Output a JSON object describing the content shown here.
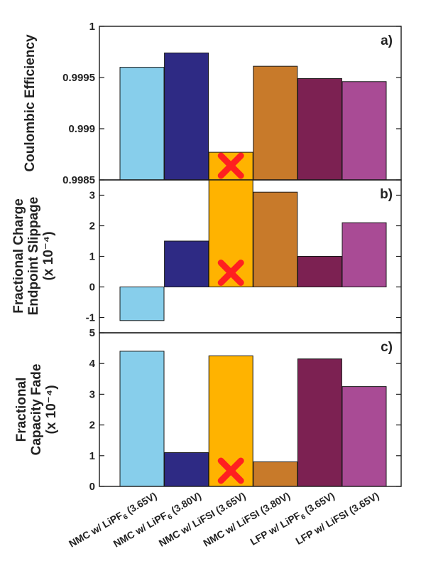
{
  "chart_data": {
    "type": "bar",
    "categories": [
      "NMC w/ LiPF6 (3.65V)",
      "NMC w/ LiPF6 (3.80V)",
      "NMC w/ LiFSI (3.65V)",
      "NMC w/ LiFSI (3.80V)",
      "LFP w/ LiPF6 (3.65V)",
      "LFP w/ LiFSI (3.65V)"
    ],
    "category_labels": [
      {
        "pre": "NMC w/ LiPF",
        "sub": "6",
        "post": " (3.65V)"
      },
      {
        "pre": "NMC w/ LiPF",
        "sub": "6",
        "post": " (3.80V)"
      },
      {
        "pre": "NMC w/ LiFSI (3.65V)",
        "sub": "",
        "post": ""
      },
      {
        "pre": "NMC w/ LiFSI (3.80V)",
        "sub": "",
        "post": ""
      },
      {
        "pre": "LFP w/ LiPF",
        "sub": "6",
        "post": " (3.65V)"
      },
      {
        "pre": "LFP w/ LiFSI (3.65V)",
        "sub": "",
        "post": ""
      }
    ],
    "colors": [
      "#87ceeb",
      "#2e2a84",
      "#ffb300",
      "#c87a2a",
      "#7c2152",
      "#a94b95"
    ],
    "marker_color": "#ff2020",
    "marked_category_index": 2,
    "panels": [
      {
        "label": "a)",
        "ylabel_lines": [
          "Coulombic Efficiency"
        ],
        "ylim": [
          0.9985,
          1
        ],
        "ticks": [
          0.9985,
          0.999,
          0.9995,
          1
        ],
        "tick_labels": [
          "0.9985",
          "0.999",
          "0.9995",
          "1"
        ],
        "values": [
          0.9996,
          0.99974,
          0.99877,
          0.99961,
          0.99949,
          0.99946
        ]
      },
      {
        "label": "b)",
        "ylabel_lines": [
          "Fractional Charge",
          "Endpoint Slippage",
          "(x 10⁻⁴)"
        ],
        "ylim": [
          -1.5,
          3.5
        ],
        "ticks": [
          -1,
          0,
          1,
          2,
          3
        ],
        "tick_labels": [
          "-1",
          "0",
          "1",
          "2",
          "3"
        ],
        "values": [
          -1.1,
          1.5,
          3.5,
          3.1,
          1.0,
          2.1
        ]
      },
      {
        "label": "c)",
        "ylabel_lines": [
          "Fractional",
          "Capacity Fade",
          "(x 10⁻⁴)"
        ],
        "ylim": [
          0,
          5
        ],
        "ticks": [
          0,
          1,
          2,
          3,
          4,
          5
        ],
        "tick_labels": [
          "0",
          "1",
          "2",
          "3",
          "4",
          "5"
        ],
        "values": [
          4.4,
          1.1,
          4.25,
          0.8,
          4.15,
          3.25
        ]
      }
    ],
    "grid": false,
    "legend": "none"
  }
}
